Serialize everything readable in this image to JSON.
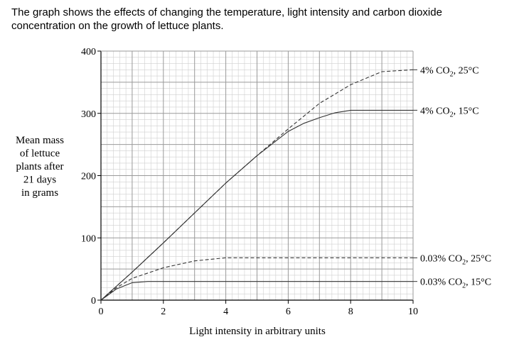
{
  "intro": {
    "line1": "The graph shows the effects of changing the temperature, light intensity and carbon dioxide",
    "line2": "concentration on the growth of lettuce plants."
  },
  "chart_data": {
    "type": "line",
    "ylabel_lines": [
      "Mean mass",
      "of lettuce",
      "plants after",
      "21 days",
      "in grams"
    ],
    "xlabel": "Light intensity in arbitrary units",
    "xlim": [
      0,
      10
    ],
    "ylim": [
      0,
      400
    ],
    "x_ticks": [
      0,
      2,
      4,
      6,
      8,
      10
    ],
    "y_ticks": [
      0,
      100,
      200,
      300,
      400
    ],
    "grid": true,
    "series": [
      {
        "name": "4% CO2, 25°C",
        "label_parts": [
          "4% CO",
          "2",
          ", 25°C"
        ],
        "style": "dashed",
        "points": [
          [
            0,
            0
          ],
          [
            1,
            45
          ],
          [
            2,
            92
          ],
          [
            3,
            140
          ],
          [
            4,
            188
          ],
          [
            5,
            232
          ],
          [
            6,
            275
          ],
          [
            7,
            316
          ],
          [
            8,
            346
          ],
          [
            9,
            367
          ],
          [
            10,
            370
          ]
        ]
      },
      {
        "name": "4% CO2, 15°C",
        "label_parts": [
          "4% CO",
          "2",
          ", 15°C"
        ],
        "style": "solid",
        "points": [
          [
            0,
            0
          ],
          [
            1,
            45
          ],
          [
            2,
            92
          ],
          [
            3,
            140
          ],
          [
            4,
            188
          ],
          [
            5,
            232
          ],
          [
            6,
            271
          ],
          [
            6.5,
            284
          ],
          [
            7,
            293
          ],
          [
            7.5,
            301
          ],
          [
            8,
            305
          ],
          [
            10,
            305
          ]
        ]
      },
      {
        "name": "0.03% CO2, 25°C",
        "label_parts": [
          "0.03% CO",
          "2",
          ", 25°C"
        ],
        "style": "dashed",
        "points": [
          [
            0,
            0
          ],
          [
            0.5,
            20
          ],
          [
            1,
            35
          ],
          [
            2,
            52
          ],
          [
            3,
            63
          ],
          [
            4,
            68
          ],
          [
            10,
            68
          ]
        ]
      },
      {
        "name": "0.03% CO2, 15°C",
        "label_parts": [
          "0.03% CO",
          "2",
          ", 15°C"
        ],
        "style": "solid",
        "points": [
          [
            0,
            0
          ],
          [
            0.5,
            18
          ],
          [
            1,
            28
          ],
          [
            1.5,
            30
          ],
          [
            10,
            30
          ]
        ]
      }
    ]
  }
}
